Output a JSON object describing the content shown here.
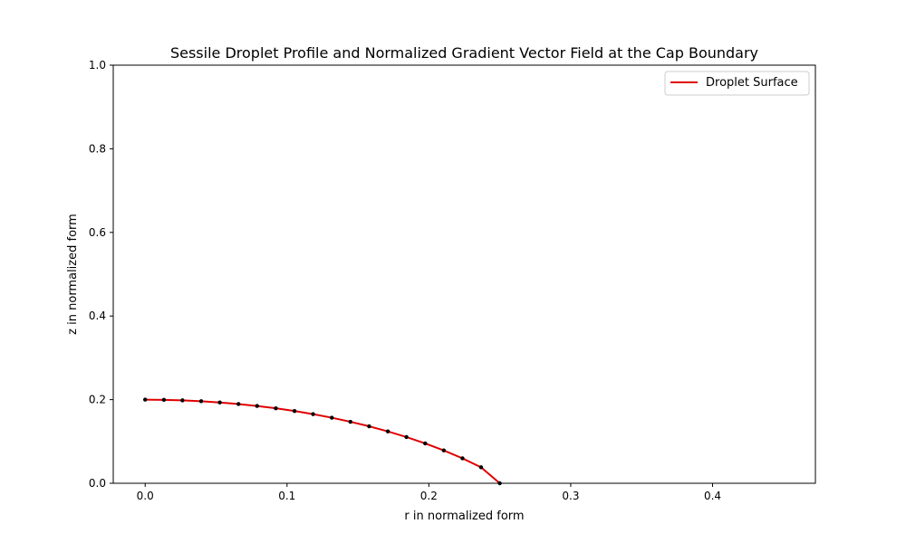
{
  "chart_data": {
    "type": "line",
    "title": "Sessile Droplet Profile and Normalized Gradient Vector Field at the Cap Boundary",
    "xlabel": "r in normalized form",
    "ylabel": "z in normalized form",
    "xlim": [
      -0.0225,
      0.4725
    ],
    "ylim": [
      0,
      1
    ],
    "xticks": [
      0.0,
      0.1,
      0.2,
      0.3,
      0.4
    ],
    "xtick_labels": [
      "0.0",
      "0.1",
      "0.2",
      "0.3",
      "0.4"
    ],
    "yticks": [
      0.0,
      0.2,
      0.4,
      0.6,
      0.8,
      1.0
    ],
    "ytick_labels": [
      "0.0",
      "0.2",
      "0.4",
      "0.6",
      "0.8",
      "1.0"
    ],
    "grid": false,
    "legend": {
      "position": "top-right",
      "entries": [
        "Droplet Surface"
      ]
    },
    "series": [
      {
        "name": "Droplet Surface",
        "color": "#e00000",
        "x": [
          0.0,
          0.0132,
          0.0263,
          0.0395,
          0.0526,
          0.0658,
          0.0789,
          0.0921,
          0.1053,
          0.1184,
          0.1316,
          0.1447,
          0.1579,
          0.1711,
          0.1842,
          0.1974,
          0.2105,
          0.2237,
          0.2368,
          0.25
        ],
        "y": [
          0.2,
          0.1995,
          0.1983,
          0.1962,
          0.1933,
          0.1895,
          0.1849,
          0.1793,
          0.1728,
          0.1653,
          0.1568,
          0.1471,
          0.1363,
          0.1241,
          0.1105,
          0.0954,
          0.0785,
          0.0596,
          0.0382,
          0.0
        ]
      }
    ],
    "markers": {
      "color": "#000000",
      "x": [
        0.0,
        0.0132,
        0.0263,
        0.0395,
        0.0526,
        0.0658,
        0.0789,
        0.0921,
        0.1053,
        0.1184,
        0.1316,
        0.1447,
        0.1579,
        0.1711,
        0.1842,
        0.1974,
        0.2105,
        0.2237,
        0.2368,
        0.25
      ],
      "y": [
        0.2,
        0.1995,
        0.1983,
        0.1962,
        0.1933,
        0.1895,
        0.1849,
        0.1793,
        0.1728,
        0.1653,
        0.1568,
        0.1471,
        0.1363,
        0.1241,
        0.1105,
        0.0954,
        0.0785,
        0.0596,
        0.0382,
        0.0
      ]
    }
  }
}
